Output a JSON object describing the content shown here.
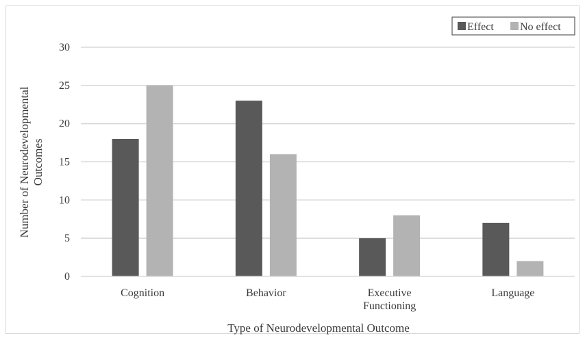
{
  "chart_data": {
    "type": "bar",
    "title": "",
    "xlabel": "Type of Neurodevelopmental Outcome",
    "ylabel_lines": [
      "Number of Neurodevelopmental",
      "Outcomes"
    ],
    "categories": [
      [
        "Cognition"
      ],
      [
        "Behavior"
      ],
      [
        "Executive",
        "Functioning"
      ],
      [
        "Language"
      ]
    ],
    "series": [
      {
        "name": "Effect",
        "values": [
          18,
          23,
          5,
          7
        ],
        "color": "#595959"
      },
      {
        "name": "No effect",
        "values": [
          25,
          16,
          8,
          2
        ],
        "color": "#b3b3b3"
      }
    ],
    "ylim": [
      0,
      30
    ],
    "yticks": [
      0,
      5,
      10,
      15,
      20,
      25,
      30
    ],
    "grid": true,
    "legend_position": "top-right",
    "gridline_color": "#d9d9d9"
  }
}
